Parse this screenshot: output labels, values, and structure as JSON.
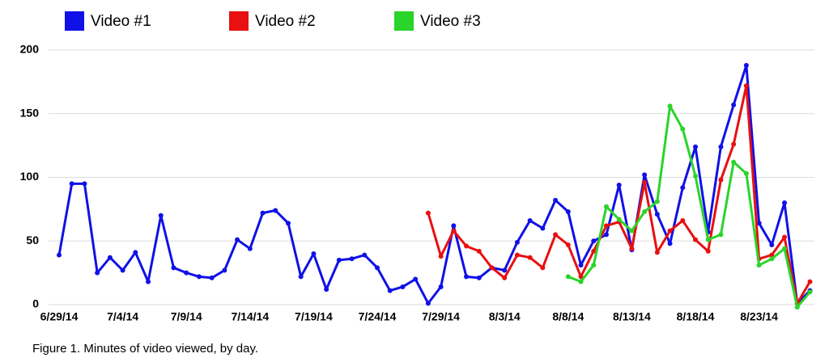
{
  "chart_data": {
    "type": "line",
    "caption": "Figure 1. Minutes of video viewed, by day.",
    "categories": [
      "6/29/14",
      null,
      null,
      null,
      null,
      "7/4/14",
      null,
      null,
      null,
      null,
      "7/9/14",
      null,
      null,
      null,
      null,
      "7/14/14",
      null,
      null,
      null,
      null,
      "7/19/14",
      null,
      null,
      null,
      null,
      "7/24/14",
      null,
      null,
      null,
      null,
      "7/29/14",
      null,
      null,
      null,
      null,
      "8/3/14",
      null,
      null,
      null,
      null,
      "8/8/14",
      null,
      null,
      null,
      null,
      "8/13/14",
      null,
      null,
      null,
      null,
      "8/18/14",
      null,
      null,
      null,
      null,
      "8/23/14",
      null,
      null,
      null,
      null
    ],
    "series": [
      {
        "name": "Video #1",
        "color": "#1010e8",
        "values": [
          39,
          95,
          95,
          25,
          37,
          27,
          41,
          18,
          70,
          29,
          25,
          22,
          21,
          27,
          51,
          44,
          72,
          74,
          64,
          22,
          40,
          12,
          35,
          36,
          39,
          29,
          11,
          14,
          20,
          1,
          14,
          62,
          22,
          21,
          29,
          27,
          49,
          66,
          60,
          82,
          73,
          31,
          50,
          55,
          94,
          43,
          102,
          71,
          48,
          92,
          124,
          57,
          124,
          157,
          188,
          64,
          47,
          80,
          1,
          11
        ]
      },
      {
        "name": "Video #2",
        "color": "#e81010",
        "values": [
          null,
          null,
          null,
          null,
          null,
          null,
          null,
          null,
          null,
          null,
          null,
          null,
          null,
          null,
          null,
          null,
          null,
          null,
          null,
          null,
          null,
          null,
          null,
          null,
          null,
          null,
          null,
          null,
          null,
          72,
          38,
          58,
          46,
          42,
          29,
          21,
          39,
          37,
          29,
          55,
          47,
          22,
          42,
          62,
          65,
          44,
          96,
          41,
          58,
          66,
          51,
          42,
          98,
          126,
          172,
          36,
          39,
          53,
          1,
          18
        ]
      },
      {
        "name": "Video #3",
        "color": "#2ad42a",
        "values": [
          null,
          null,
          null,
          null,
          null,
          null,
          null,
          null,
          null,
          null,
          null,
          null,
          null,
          null,
          null,
          null,
          null,
          null,
          null,
          null,
          null,
          null,
          null,
          null,
          null,
          null,
          null,
          null,
          null,
          null,
          null,
          null,
          null,
          null,
          null,
          null,
          null,
          null,
          null,
          null,
          22,
          18,
          31,
          77,
          67,
          58,
          73,
          81,
          156,
          138,
          101,
          51,
          55,
          112,
          103,
          31,
          36,
          44,
          -2,
          10
        ]
      }
    ],
    "ylim": [
      0,
      200
    ],
    "yticks": [
      0,
      50,
      100,
      150,
      200
    ],
    "grid": true
  }
}
